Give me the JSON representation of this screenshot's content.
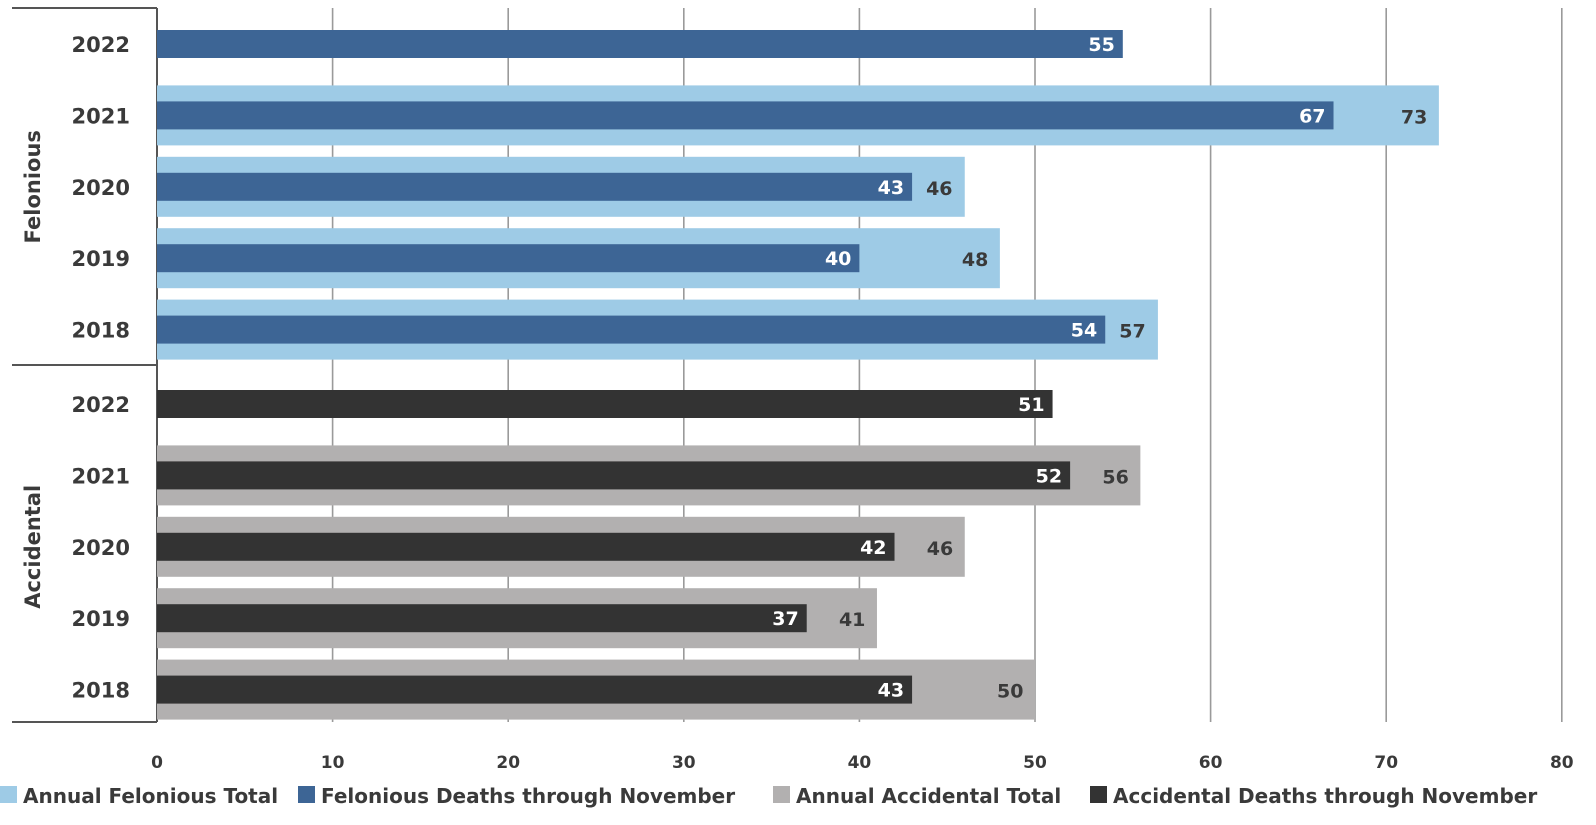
{
  "chart_data": {
    "type": "bar",
    "orientation": "horizontal",
    "grid": true,
    "legend_position": "bottom",
    "xlim": [
      0,
      80
    ],
    "xticks": [
      "0",
      "10",
      "20",
      "30",
      "40",
      "50",
      "60",
      "70",
      "80"
    ],
    "groups": [
      {
        "name": "Felonious",
        "categories": [
          "2022",
          "2021",
          "2020",
          "2019",
          "2018"
        ],
        "series": [
          {
            "name": "Annual Felonious Total",
            "color": "#9ecbe6",
            "values": [
              null,
              73,
              46,
              48,
              57
            ]
          },
          {
            "name": "Felonious Deaths through November",
            "color": "#3d6595",
            "values": [
              55,
              67,
              43,
              40,
              54
            ]
          }
        ]
      },
      {
        "name": "Accidental",
        "categories": [
          "2022",
          "2021",
          "2020",
          "2019",
          "2018"
        ],
        "series": [
          {
            "name": "Annual Accidental Total",
            "color": "#b2b0b0",
            "values": [
              null,
              56,
              46,
              41,
              50
            ]
          },
          {
            "name": "Accidental Deaths through November",
            "color": "#333333",
            "values": [
              51,
              52,
              42,
              37,
              43
            ]
          }
        ]
      }
    ],
    "legend": [
      {
        "label": "Annual Felonious Total",
        "color": "#9ecbe6"
      },
      {
        "label": "Felonious Deaths through November",
        "color": "#3d6595"
      },
      {
        "label": "Annual Accidental Total",
        "color": "#b2b0b0"
      },
      {
        "label": "Accidental Deaths through November",
        "color": "#333333"
      }
    ]
  }
}
